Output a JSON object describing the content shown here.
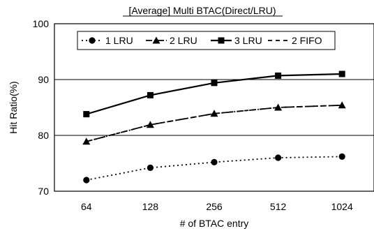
{
  "chart_data": {
    "type": "line",
    "title": "[Average] Multi BTAC(Direct/LRU)",
    "xlabel": "# of BTAC entry",
    "ylabel": "Hit Ratio(%)",
    "categories": [
      "64",
      "128",
      "256",
      "512",
      "1024"
    ],
    "ylim": [
      70,
      100
    ],
    "yticks": [
      "70",
      "80",
      "90",
      "100"
    ],
    "grid": "horizontal",
    "legend_position": "top",
    "series": [
      {
        "name": "1 LRU",
        "marker": "circle",
        "line_style": "dotted",
        "color": "#000000",
        "values": [
          72.0,
          74.2,
          75.2,
          76.0,
          76.2
        ]
      },
      {
        "name": "2 LRU",
        "marker": "triangle",
        "line_style": "dash-dot",
        "color": "#000000",
        "values": [
          78.9,
          81.9,
          83.9,
          85.0,
          85.4
        ]
      },
      {
        "name": "3 LRU",
        "marker": "square",
        "line_style": "solid",
        "color": "#000000",
        "values": [
          83.8,
          87.2,
          89.4,
          90.7,
          91.0
        ]
      },
      {
        "name": "2 FIFO",
        "marker": "none",
        "line_style": "dashed",
        "color": "#000000",
        "values": [
          78.9,
          81.9,
          83.9,
          85.0,
          85.4
        ]
      }
    ]
  }
}
